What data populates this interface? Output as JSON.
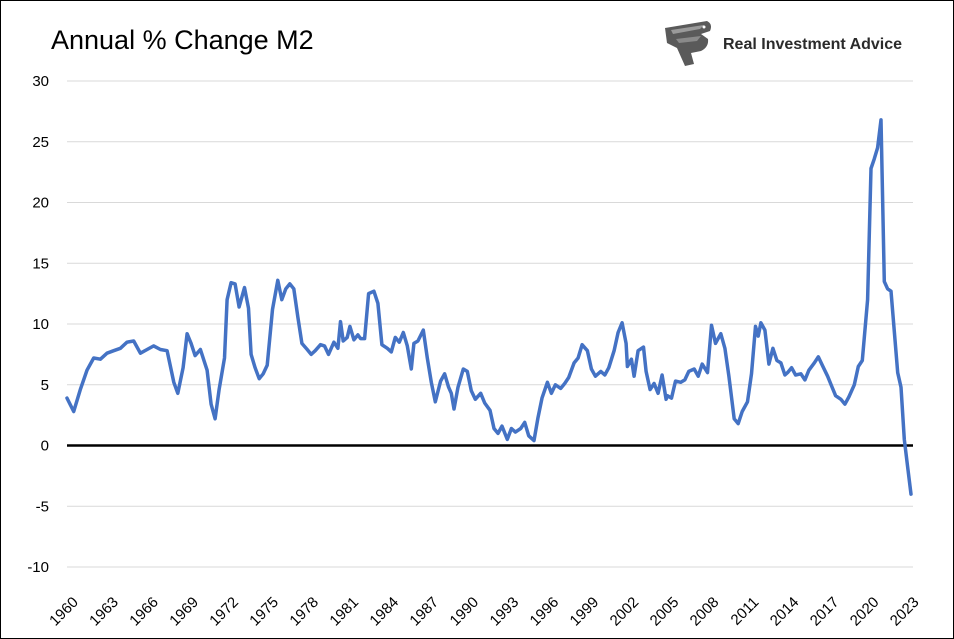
{
  "chart_data": {
    "type": "line",
    "title": "Annual % Change M2",
    "brand": "Real Investment Advice",
    "ylim": [
      -10,
      30
    ],
    "yticks": [
      "30",
      "25",
      "20",
      "15",
      "10",
      "5",
      "0",
      "-5",
      "-10"
    ],
    "xlim": [
      1960,
      2023.4
    ],
    "xticks": [
      "1960",
      "1963",
      "1966",
      "1969",
      "1972",
      "1975",
      "1978",
      "1981",
      "1984",
      "1987",
      "1990",
      "1993",
      "1996",
      "1999",
      "2002",
      "2005",
      "2008",
      "2011",
      "2014",
      "2017",
      "2020",
      "2023"
    ],
    "grid": true,
    "zero_line": true,
    "line_color": "#4472C4",
    "series": [
      {
        "points": [
          [
            1960.0,
            3.9
          ],
          [
            1960.5,
            2.8
          ],
          [
            1961.0,
            4.6
          ],
          [
            1961.5,
            6.2
          ],
          [
            1962.0,
            7.2
          ],
          [
            1962.5,
            7.1
          ],
          [
            1963.0,
            7.6
          ],
          [
            1963.5,
            7.8
          ],
          [
            1964.0,
            8.0
          ],
          [
            1964.5,
            8.5
          ],
          [
            1965.0,
            8.6
          ],
          [
            1965.5,
            7.6
          ],
          [
            1966.0,
            7.9
          ],
          [
            1966.5,
            8.2
          ],
          [
            1967.0,
            7.9
          ],
          [
            1967.5,
            7.8
          ],
          [
            1968.0,
            5.2
          ],
          [
            1968.3,
            4.3
          ],
          [
            1968.7,
            6.4
          ],
          [
            1969.0,
            9.2
          ],
          [
            1969.3,
            8.4
          ],
          [
            1969.6,
            7.4
          ],
          [
            1970.0,
            7.9
          ],
          [
            1970.5,
            6.2
          ],
          [
            1970.8,
            3.4
          ],
          [
            1971.1,
            2.2
          ],
          [
            1971.4,
            4.6
          ],
          [
            1971.8,
            7.2
          ],
          [
            1972.0,
            12.0
          ],
          [
            1972.3,
            13.4
          ],
          [
            1972.6,
            13.3
          ],
          [
            1972.9,
            11.4
          ],
          [
            1973.3,
            13.0
          ],
          [
            1973.6,
            11.3
          ],
          [
            1973.8,
            7.5
          ],
          [
            1974.1,
            6.4
          ],
          [
            1974.4,
            5.5
          ],
          [
            1974.7,
            5.9
          ],
          [
            1975.0,
            6.6
          ],
          [
            1975.4,
            11.2
          ],
          [
            1975.8,
            13.6
          ],
          [
            1976.1,
            12.0
          ],
          [
            1976.4,
            12.9
          ],
          [
            1976.7,
            13.3
          ],
          [
            1977.0,
            12.9
          ],
          [
            1977.3,
            10.6
          ],
          [
            1977.6,
            8.4
          ],
          [
            1978.0,
            7.9
          ],
          [
            1978.3,
            7.5
          ],
          [
            1978.6,
            7.8
          ],
          [
            1979.0,
            8.3
          ],
          [
            1979.3,
            8.2
          ],
          [
            1979.6,
            7.5
          ],
          [
            1980.0,
            8.5
          ],
          [
            1980.3,
            8.0
          ],
          [
            1980.5,
            10.2
          ],
          [
            1980.7,
            8.6
          ],
          [
            1981.0,
            8.9
          ],
          [
            1981.2,
            9.8
          ],
          [
            1981.5,
            8.7
          ],
          [
            1981.8,
            9.1
          ],
          [
            1982.0,
            8.8
          ],
          [
            1982.3,
            8.8
          ],
          [
            1982.6,
            12.5
          ],
          [
            1983.0,
            12.7
          ],
          [
            1983.3,
            11.7
          ],
          [
            1983.6,
            8.3
          ],
          [
            1984.0,
            8.0
          ],
          [
            1984.3,
            7.7
          ],
          [
            1984.6,
            8.9
          ],
          [
            1984.9,
            8.5
          ],
          [
            1985.2,
            9.3
          ],
          [
            1985.5,
            8.2
          ],
          [
            1985.8,
            6.3
          ],
          [
            1986.0,
            8.4
          ],
          [
            1986.3,
            8.6
          ],
          [
            1986.7,
            9.5
          ],
          [
            1987.0,
            7.2
          ],
          [
            1987.3,
            5.2
          ],
          [
            1987.6,
            3.6
          ],
          [
            1988.0,
            5.3
          ],
          [
            1988.3,
            5.9
          ],
          [
            1988.6,
            4.8
          ],
          [
            1988.8,
            4.3
          ],
          [
            1989.0,
            3.0
          ],
          [
            1989.3,
            4.8
          ],
          [
            1989.7,
            6.3
          ],
          [
            1990.0,
            6.1
          ],
          [
            1990.3,
            4.5
          ],
          [
            1990.6,
            3.8
          ],
          [
            1991.0,
            4.3
          ],
          [
            1991.3,
            3.5
          ],
          [
            1991.7,
            2.9
          ],
          [
            1992.0,
            1.4
          ],
          [
            1992.3,
            1.0
          ],
          [
            1992.6,
            1.6
          ],
          [
            1993.0,
            0.5
          ],
          [
            1993.3,
            1.4
          ],
          [
            1993.6,
            1.1
          ],
          [
            1994.0,
            1.4
          ],
          [
            1994.3,
            1.9
          ],
          [
            1994.6,
            0.8
          ],
          [
            1995.0,
            0.4
          ],
          [
            1995.3,
            2.3
          ],
          [
            1995.6,
            3.9
          ],
          [
            1996.0,
            5.2
          ],
          [
            1996.3,
            4.3
          ],
          [
            1996.6,
            5.0
          ],
          [
            1997.0,
            4.7
          ],
          [
            1997.3,
            5.1
          ],
          [
            1997.6,
            5.6
          ],
          [
            1998.0,
            6.8
          ],
          [
            1998.3,
            7.2
          ],
          [
            1998.6,
            8.3
          ],
          [
            1999.0,
            7.8
          ],
          [
            1999.3,
            6.3
          ],
          [
            1999.6,
            5.7
          ],
          [
            2000.0,
            6.1
          ],
          [
            2000.3,
            5.8
          ],
          [
            2000.6,
            6.4
          ],
          [
            2001.0,
            7.8
          ],
          [
            2001.3,
            9.3
          ],
          [
            2001.6,
            10.1
          ],
          [
            2001.9,
            8.4
          ],
          [
            2002.0,
            6.5
          ],
          [
            2002.3,
            7.1
          ],
          [
            2002.5,
            5.7
          ],
          [
            2002.8,
            7.8
          ],
          [
            2003.2,
            8.1
          ],
          [
            2003.4,
            6.1
          ],
          [
            2003.7,
            4.6
          ],
          [
            2004.0,
            5.1
          ],
          [
            2004.3,
            4.3
          ],
          [
            2004.6,
            5.8
          ],
          [
            2004.9,
            3.8
          ],
          [
            2005.0,
            4.1
          ],
          [
            2005.3,
            3.9
          ],
          [
            2005.6,
            5.3
          ],
          [
            2006.0,
            5.2
          ],
          [
            2006.3,
            5.4
          ],
          [
            2006.6,
            6.1
          ],
          [
            2007.0,
            6.3
          ],
          [
            2007.3,
            5.7
          ],
          [
            2007.6,
            6.7
          ],
          [
            2008.0,
            6.0
          ],
          [
            2008.3,
            9.9
          ],
          [
            2008.6,
            8.4
          ],
          [
            2009.0,
            9.2
          ],
          [
            2009.3,
            8.0
          ],
          [
            2009.6,
            5.7
          ],
          [
            2010.0,
            2.2
          ],
          [
            2010.3,
            1.8
          ],
          [
            2010.6,
            2.8
          ],
          [
            2011.0,
            3.6
          ],
          [
            2011.3,
            5.9
          ],
          [
            2011.6,
            9.8
          ],
          [
            2011.8,
            9.0
          ],
          [
            2012.0,
            10.1
          ],
          [
            2012.3,
            9.5
          ],
          [
            2012.6,
            6.7
          ],
          [
            2012.9,
            8.0
          ],
          [
            2013.2,
            7.0
          ],
          [
            2013.5,
            6.8
          ],
          [
            2013.8,
            5.8
          ],
          [
            2014.0,
            6.0
          ],
          [
            2014.3,
            6.4
          ],
          [
            2014.6,
            5.8
          ],
          [
            2015.0,
            5.9
          ],
          [
            2015.3,
            5.4
          ],
          [
            2015.6,
            6.2
          ],
          [
            2016.0,
            6.8
          ],
          [
            2016.3,
            7.3
          ],
          [
            2016.6,
            6.6
          ],
          [
            2017.0,
            5.7
          ],
          [
            2017.3,
            4.9
          ],
          [
            2017.6,
            4.1
          ],
          [
            2018.0,
            3.8
          ],
          [
            2018.3,
            3.4
          ],
          [
            2018.6,
            4.0
          ],
          [
            2019.0,
            5.0
          ],
          [
            2019.3,
            6.5
          ],
          [
            2019.6,
            7.0
          ],
          [
            2020.0,
            12.0
          ],
          [
            2020.25,
            22.8
          ],
          [
            2020.5,
            23.6
          ],
          [
            2020.75,
            24.5
          ],
          [
            2021.0,
            26.8
          ],
          [
            2021.25,
            13.5
          ],
          [
            2021.5,
            12.9
          ],
          [
            2021.75,
            12.7
          ],
          [
            2022.0,
            9.4
          ],
          [
            2022.25,
            6.0
          ],
          [
            2022.5,
            4.8
          ],
          [
            2022.75,
            0.5
          ],
          [
            2023.0,
            -1.8
          ],
          [
            2023.25,
            -4.0
          ]
        ]
      }
    ]
  }
}
